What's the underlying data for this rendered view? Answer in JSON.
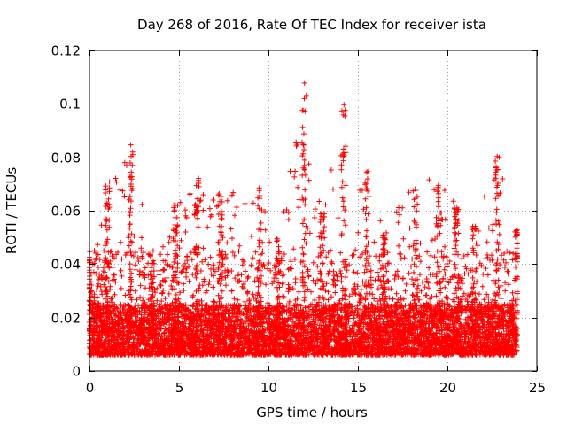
{
  "chart_data": {
    "type": "scatter",
    "title": "Day 268 of 2016, Rate Of TEC Index for receiver ista",
    "xlabel": "GPS time / hours",
    "ylabel": "ROTI / TECUs",
    "xlim": [
      0,
      25
    ],
    "ylim": [
      0,
      0.12
    ],
    "xticks": [
      0,
      5,
      10,
      15,
      20,
      25
    ],
    "xtick_labels": [
      "0",
      "5",
      "10",
      "15",
      "20",
      "25"
    ],
    "yticks": [
      0,
      0.02,
      0.04,
      0.06,
      0.08,
      0.1,
      0.12
    ],
    "ytick_labels": [
      "0",
      "0.02",
      "0.04",
      "0.06",
      "0.08",
      "0.1",
      "0.12"
    ],
    "grid": true,
    "marker": "+",
    "color": "#ff0000",
    "data_x_range": [
      0.0,
      23.9
    ],
    "baseline_band": [
      0.006,
      0.025
    ],
    "envelope": [
      {
        "x": 0.0,
        "y": 0.045
      },
      {
        "x": 1.0,
        "y": 0.071
      },
      {
        "x": 2.3,
        "y": 0.086
      },
      {
        "x": 3.5,
        "y": 0.045
      },
      {
        "x": 4.8,
        "y": 0.063
      },
      {
        "x": 6.0,
        "y": 0.073
      },
      {
        "x": 7.3,
        "y": 0.067
      },
      {
        "x": 9.5,
        "y": 0.069
      },
      {
        "x": 10.5,
        "y": 0.05
      },
      {
        "x": 12.0,
        "y": 0.11
      },
      {
        "x": 13.0,
        "y": 0.06
      },
      {
        "x": 14.2,
        "y": 0.103
      },
      {
        "x": 15.5,
        "y": 0.078
      },
      {
        "x": 16.5,
        "y": 0.052
      },
      {
        "x": 18.2,
        "y": 0.074
      },
      {
        "x": 19.5,
        "y": 0.071
      },
      {
        "x": 20.5,
        "y": 0.063
      },
      {
        "x": 21.5,
        "y": 0.055
      },
      {
        "x": 22.8,
        "y": 0.082
      },
      {
        "x": 23.9,
        "y": 0.053
      }
    ]
  }
}
